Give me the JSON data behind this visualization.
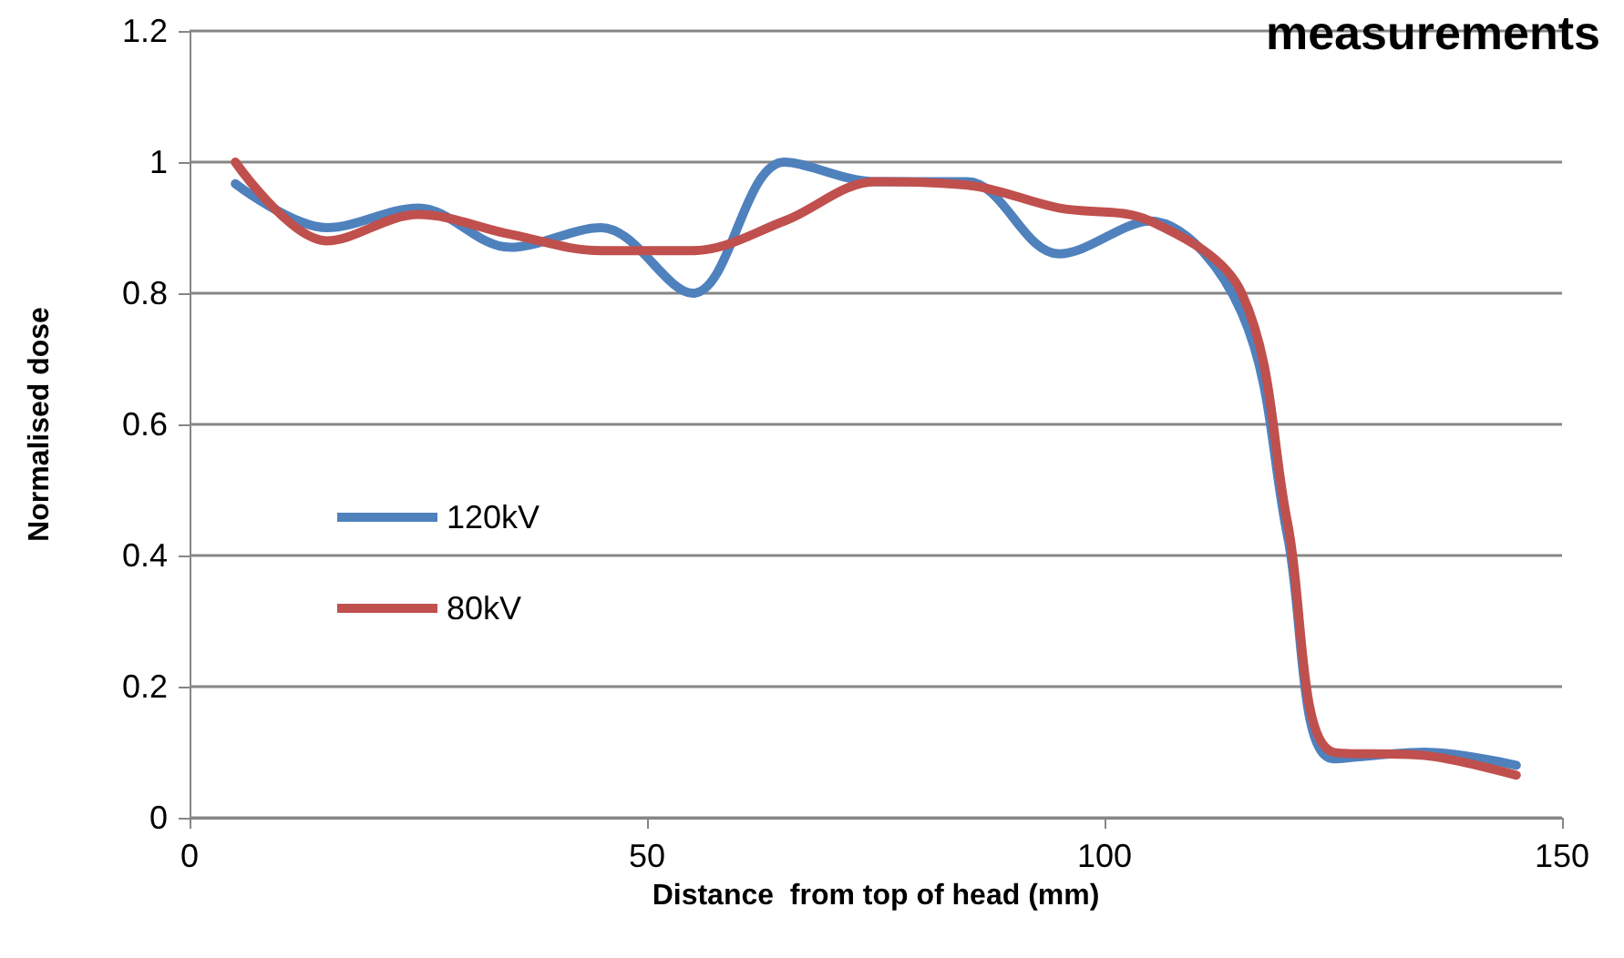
{
  "chart_data": {
    "type": "line",
    "title": "measurements",
    "xlabel": "Distance  from top of head (mm)",
    "ylabel": "Normalised dose",
    "x": [
      5,
      15,
      25,
      35,
      45,
      55,
      65,
      75,
      85,
      95,
      105,
      115,
      120,
      125,
      135,
      145
    ],
    "series": [
      {
        "name": "120kV",
        "color": "#4f81bd",
        "values": [
          0.967,
          0.9,
          0.93,
          0.87,
          0.9,
          0.8,
          1.0,
          0.97,
          0.97,
          0.86,
          0.91,
          0.77,
          0.43,
          0.09,
          0.1,
          0.08
        ]
      },
      {
        "name": "80kV",
        "color": "#c0504d",
        "values": [
          1.0,
          0.88,
          0.92,
          0.89,
          0.865,
          0.865,
          0.91,
          0.97,
          0.965,
          0.93,
          0.91,
          0.8,
          0.45,
          0.1,
          0.095,
          0.065
        ]
      }
    ],
    "xlim": [
      0,
      150
    ],
    "xticks": [
      0,
      50,
      100,
      150
    ],
    "ylim": [
      0,
      1.2
    ],
    "yticks": [
      0,
      0.2,
      0.4,
      0.6,
      0.8,
      1,
      1.2
    ],
    "grid": "y",
    "legend": "left",
    "marker": "none",
    "line_style": "solid"
  }
}
